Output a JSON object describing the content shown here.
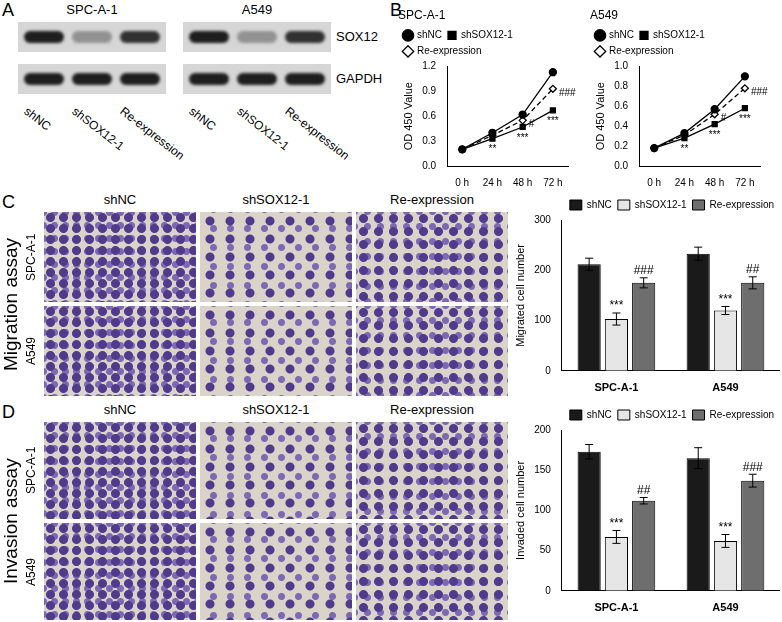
{
  "panels": {
    "A": {
      "label": "A",
      "cell_lines": [
        "SPC-A-1",
        "A549"
      ],
      "proteins": [
        "SOX12",
        "GAPDH"
      ],
      "lanes": [
        "shNC",
        "shSOX12-1",
        "Re-expression"
      ]
    },
    "B": {
      "label": "B"
    },
    "C": {
      "label": "C",
      "assay": "Migration assay",
      "rows": [
        "SPC-A-1",
        "A549"
      ],
      "columns": [
        "shNC",
        "shSOX12-1",
        "Re-expression"
      ]
    },
    "D": {
      "label": "D",
      "assay": "Invasion assay",
      "rows": [
        "SPC-A-1",
        "A549"
      ],
      "columns": [
        "shNC",
        "shSOX12-1",
        "Re-expression"
      ]
    }
  },
  "chart_data": [
    {
      "type": "line",
      "title": "SPC-A-1",
      "y_label": "OD 450 Value",
      "categories": [
        "0 h",
        "24 h",
        "48 h",
        "72 h"
      ],
      "series": [
        {
          "name": "shNC",
          "color": "#000000",
          "marker": "circle",
          "line_style": "solid",
          "values": [
            0.2,
            0.4,
            0.62,
            1.13
          ]
        },
        {
          "name": "shSOX12-1",
          "color": "#000000",
          "marker": "square",
          "line_style": "solid",
          "values": [
            0.2,
            0.33,
            0.47,
            0.67
          ]
        },
        {
          "name": "Re-expression",
          "color": "#000000",
          "marker": "diamond",
          "line_style": "dashed",
          "values": [
            0.2,
            0.37,
            0.55,
            0.93
          ]
        }
      ],
      "ylim": [
        0,
        1.2
      ],
      "yticks": [
        {
          "value": 0,
          "label": "0.0"
        },
        0.3,
        0.6,
        0.9,
        1.2
      ],
      "grid": false,
      "legend": "top left",
      "annotations": [
        {
          "x": "24 h",
          "series": "shSOX12-1",
          "text": "**"
        },
        {
          "x": "48 h",
          "series": "shSOX12-1",
          "text": "***"
        },
        {
          "x": "72 h",
          "series": "shSOX12-1",
          "text": "***"
        },
        {
          "x": "48 h",
          "series": "Re-expression",
          "text": "#"
        },
        {
          "x": "72 h",
          "series": "Re-expression",
          "text": "###"
        }
      ]
    },
    {
      "type": "line",
      "title": "A549",
      "y_label": "OD 450 Value",
      "categories": [
        "0 h",
        "24 h",
        "48 h",
        "72 h"
      ],
      "series": [
        {
          "name": "shNC",
          "color": "#000000",
          "marker": "circle",
          "line_style": "solid",
          "values": [
            0.18,
            0.33,
            0.57,
            0.9
          ]
        },
        {
          "name": "shSOX12-1",
          "color": "#000000",
          "marker": "square",
          "line_style": "solid",
          "values": [
            0.18,
            0.28,
            0.42,
            0.58
          ]
        },
        {
          "name": "Re-expression",
          "color": "#000000",
          "marker": "diamond",
          "line_style": "dashed",
          "values": [
            0.18,
            0.31,
            0.52,
            0.78
          ]
        }
      ],
      "ylim": [
        0,
        1
      ],
      "yticks": [
        {
          "value": 0,
          "label": "0.0"
        },
        0.2,
        0.4,
        0.6,
        0.8,
        {
          "value": 1,
          "label": "1.0"
        }
      ],
      "grid": false,
      "legend": "top left",
      "annotations": [
        {
          "x": "24 h",
          "series": "shSOX12-1",
          "text": "**"
        },
        {
          "x": "48 h",
          "series": "shSOX12-1",
          "text": "***"
        },
        {
          "x": "72 h",
          "series": "shSOX12-1",
          "text": "***"
        },
        {
          "x": "48 h",
          "series": "Re-expression",
          "text": "#"
        },
        {
          "x": "72 h",
          "series": "Re-expression",
          "text": "###"
        }
      ]
    },
    {
      "type": "bar",
      "y_label": "Migrated cell number",
      "categories": [
        "SPC-A-1",
        "A549"
      ],
      "series": [
        {
          "name": "shNC",
          "color": "#1a1a1a",
          "values": [
            212,
            233
          ],
          "errors": [
            12,
            13
          ]
        },
        {
          "name": "shSOX12-1",
          "color": "#e6e6e6",
          "values": [
            103,
            120
          ],
          "errors": [
            12,
            8
          ]
        },
        {
          "name": "Re-expression",
          "color": "#6e6e6e",
          "values": [
            175,
            175
          ],
          "errors": [
            10,
            12
          ]
        }
      ],
      "ylim": [
        0,
        300
      ],
      "yticks": [
        0,
        100,
        200,
        300
      ],
      "grid": false,
      "legend": "top right",
      "annotations": [
        {
          "category": "SPC-A-1",
          "series": "shSOX12-1",
          "text": "***"
        },
        {
          "category": "SPC-A-1",
          "series": "Re-expression",
          "text": "###"
        },
        {
          "category": "A549",
          "series": "shSOX12-1",
          "text": "***"
        },
        {
          "category": "A549",
          "series": "Re-expression",
          "text": "##"
        }
      ]
    },
    {
      "type": "bar",
      "y_label": "Invaded cell number",
      "categories": [
        "SPC-A-1",
        "A549"
      ],
      "series": [
        {
          "name": "shNC",
          "color": "#1a1a1a",
          "values": [
            173,
            165
          ],
          "errors": [
            9,
            13
          ]
        },
        {
          "name": "shSOX12-1",
          "color": "#e6e6e6",
          "values": [
            67,
            62
          ],
          "errors": [
            8,
            8
          ]
        },
        {
          "name": "Re-expression",
          "color": "#6e6e6e",
          "values": [
            112,
            137
          ],
          "errors": [
            4,
            8
          ]
        }
      ],
      "ylim": [
        0,
        200
      ],
      "yticks": [
        0,
        50,
        100,
        150,
        200
      ],
      "grid": false,
      "legend": "top right",
      "annotations": [
        {
          "category": "SPC-A-1",
          "series": "shSOX12-1",
          "text": "***"
        },
        {
          "category": "SPC-A-1",
          "series": "Re-expression",
          "text": "##"
        },
        {
          "category": "A549",
          "series": "shSOX12-1",
          "text": "***"
        },
        {
          "category": "A549",
          "series": "Re-expression",
          "text": "###"
        }
      ]
    }
  ]
}
